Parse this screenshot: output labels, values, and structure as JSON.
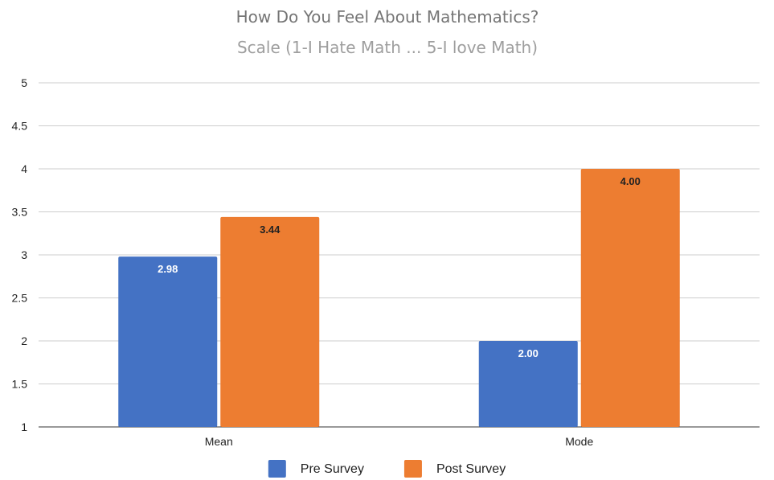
{
  "chart_data": {
    "type": "bar",
    "title": "How Do You Feel About Mathematics?",
    "subtitle": "Scale (1-I Hate Math ... 5-I love Math)",
    "xlabel": "",
    "ylabel": "",
    "categories": [
      "Mean",
      "Mode"
    ],
    "series": [
      {
        "name": "Pre Survey",
        "color": "#4472C4",
        "values": [
          2.98,
          2.0
        ],
        "labels": [
          "2.98",
          "2.00"
        ],
        "label_color": "#ffffff"
      },
      {
        "name": "Post Survey",
        "color": "#ED7D31",
        "values": [
          3.44,
          4.0
        ],
        "labels": [
          "3.44",
          "4.00"
        ],
        "label_color": "#222222"
      }
    ],
    "ylim": [
      1,
      5
    ],
    "yticks": [
      "1",
      "1.5",
      "2",
      "2.5",
      "3",
      "3.5",
      "4",
      "4.5",
      "5"
    ],
    "grid": true,
    "legend_position": "bottom"
  }
}
